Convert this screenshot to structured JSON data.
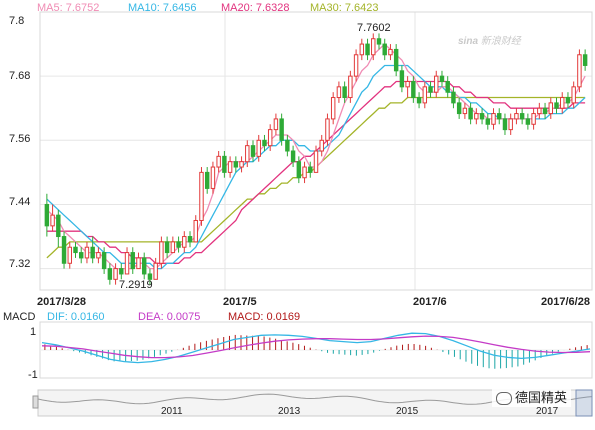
{
  "legend": {
    "ma5": "MA5: 7.6752",
    "ma10": "MA10: 7.6456",
    "ma20": "MA20: 7.6328",
    "ma30": "MA30: 7.6423"
  },
  "macd_legend": {
    "title": "MACD",
    "dif": "DIF: 0.0160",
    "dea": "DEA: 0.0075",
    "macd": "MACD: 0.0169"
  },
  "price_axis": [
    "7.8",
    "7.68",
    "7.56",
    "7.44",
    "7.32"
  ],
  "macd_axis": [
    "1",
    "-1"
  ],
  "date_labels": [
    "2017/3/28",
    "2017/5",
    "2017/6",
    "2017/6/28"
  ],
  "nav_years": [
    "2011",
    "2013",
    "2015",
    "2017"
  ],
  "annotations": {
    "high": "7.7602",
    "low": "7.2919"
  },
  "watermark": "新浪财经",
  "badge": "德国精英",
  "colors": {
    "up": "#e23a3a",
    "down": "#2eaa36",
    "ma5": "#f08cb4",
    "ma10": "#35b7e5",
    "ma20": "#e2337f",
    "ma30": "#a4b429",
    "macd_dif": "#35b7e5",
    "macd_dea": "#c43bc7",
    "macd_hist_pos": "#b11818",
    "macd_hist_neg": "#1aa6a6"
  },
  "chart_data": {
    "type": "candlestick",
    "xlabel": "",
    "ylabel": "",
    "ylim": [
      7.28,
      7.8
    ],
    "ma_series": [
      {
        "name": "MA5",
        "last": 7.6752
      },
      {
        "name": "MA10",
        "last": 7.6456
      },
      {
        "name": "MA20",
        "last": 7.6328
      },
      {
        "name": "MA30",
        "last": 7.6423
      }
    ],
    "candles": [
      [
        7.44,
        7.4,
        7.46,
        7.38,
        0
      ],
      [
        7.4,
        7.42,
        7.44,
        7.39,
        1
      ],
      [
        7.42,
        7.38,
        7.43,
        7.36,
        0
      ],
      [
        7.38,
        7.33,
        7.39,
        7.32,
        0
      ],
      [
        7.33,
        7.36,
        7.37,
        7.32,
        1
      ],
      [
        7.36,
        7.35,
        7.37,
        7.34,
        0
      ],
      [
        7.35,
        7.34,
        7.36,
        7.33,
        0
      ],
      [
        7.34,
        7.36,
        7.37,
        7.33,
        1
      ],
      [
        7.36,
        7.34,
        7.38,
        7.33,
        0
      ],
      [
        7.34,
        7.35,
        7.36,
        7.33,
        1
      ],
      [
        7.35,
        7.32,
        7.36,
        7.31,
        0
      ],
      [
        7.32,
        7.3,
        7.33,
        7.29,
        0
      ],
      [
        7.3,
        7.32,
        7.33,
        7.29,
        1
      ],
      [
        7.32,
        7.31,
        7.33,
        7.3,
        0
      ],
      [
        7.31,
        7.35,
        7.36,
        7.31,
        1
      ],
      [
        7.35,
        7.32,
        7.36,
        7.31,
        0
      ],
      [
        7.32,
        7.34,
        7.35,
        7.32,
        1
      ],
      [
        7.34,
        7.31,
        7.35,
        7.3,
        0
      ],
      [
        7.31,
        7.3,
        7.32,
        7.29,
        0
      ],
      [
        7.3,
        7.33,
        7.34,
        7.3,
        1
      ],
      [
        7.33,
        7.37,
        7.38,
        7.32,
        1
      ],
      [
        7.37,
        7.35,
        7.38,
        7.34,
        0
      ],
      [
        7.35,
        7.37,
        7.38,
        7.35,
        1
      ],
      [
        7.37,
        7.36,
        7.38,
        7.35,
        0
      ],
      [
        7.36,
        7.38,
        7.39,
        7.35,
        1
      ],
      [
        7.38,
        7.37,
        7.39,
        7.36,
        0
      ],
      [
        7.37,
        7.41,
        7.42,
        7.37,
        1
      ],
      [
        7.41,
        7.5,
        7.51,
        7.4,
        1
      ],
      [
        7.5,
        7.47,
        7.51,
        7.46,
        0
      ],
      [
        7.47,
        7.51,
        7.52,
        7.46,
        1
      ],
      [
        7.51,
        7.53,
        7.54,
        7.5,
        1
      ],
      [
        7.53,
        7.5,
        7.54,
        7.49,
        0
      ],
      [
        7.5,
        7.52,
        7.53,
        7.49,
        1
      ],
      [
        7.52,
        7.51,
        7.53,
        7.5,
        0
      ],
      [
        7.51,
        7.52,
        7.53,
        7.5,
        1
      ],
      [
        7.52,
        7.55,
        7.56,
        7.51,
        1
      ],
      [
        7.55,
        7.53,
        7.56,
        7.52,
        0
      ],
      [
        7.53,
        7.56,
        7.57,
        7.52,
        1
      ],
      [
        7.56,
        7.55,
        7.57,
        7.54,
        0
      ],
      [
        7.55,
        7.58,
        7.59,
        7.54,
        1
      ],
      [
        7.58,
        7.6,
        7.61,
        7.57,
        1
      ],
      [
        7.6,
        7.56,
        7.61,
        7.55,
        0
      ],
      [
        7.56,
        7.54,
        7.57,
        7.53,
        0
      ],
      [
        7.54,
        7.52,
        7.55,
        7.51,
        0
      ],
      [
        7.52,
        7.49,
        7.53,
        7.48,
        0
      ],
      [
        7.49,
        7.51,
        7.52,
        7.48,
        1
      ],
      [
        7.51,
        7.5,
        7.52,
        7.49,
        0
      ],
      [
        7.5,
        7.54,
        7.55,
        7.5,
        1
      ],
      [
        7.54,
        7.56,
        7.57,
        7.53,
        1
      ],
      [
        7.56,
        7.6,
        7.61,
        7.55,
        1
      ],
      [
        7.6,
        7.64,
        7.65,
        7.59,
        1
      ],
      [
        7.64,
        7.66,
        7.67,
        7.63,
        1
      ],
      [
        7.66,
        7.64,
        7.67,
        7.63,
        0
      ],
      [
        7.64,
        7.68,
        7.69,
        7.63,
        1
      ],
      [
        7.68,
        7.72,
        7.73,
        7.67,
        1
      ],
      [
        7.72,
        7.74,
        7.75,
        7.71,
        1
      ],
      [
        7.74,
        7.72,
        7.75,
        7.71,
        0
      ],
      [
        7.72,
        7.75,
        7.76,
        7.71,
        1
      ],
      [
        7.75,
        7.74,
        7.76,
        7.73,
        0
      ],
      [
        7.74,
        7.72,
        7.75,
        7.71,
        0
      ],
      [
        7.72,
        7.73,
        7.74,
        7.71,
        1
      ],
      [
        7.73,
        7.69,
        7.74,
        7.68,
        0
      ],
      [
        7.69,
        7.66,
        7.7,
        7.65,
        0
      ],
      [
        7.66,
        7.67,
        7.68,
        7.64,
        1
      ],
      [
        7.67,
        7.64,
        7.68,
        7.63,
        0
      ],
      [
        7.64,
        7.63,
        7.65,
        7.62,
        0
      ],
      [
        7.63,
        7.66,
        7.67,
        7.62,
        1
      ],
      [
        7.66,
        7.65,
        7.67,
        7.64,
        0
      ],
      [
        7.65,
        7.68,
        7.69,
        7.64,
        1
      ],
      [
        7.68,
        7.67,
        7.69,
        7.66,
        0
      ],
      [
        7.67,
        7.65,
        7.68,
        7.64,
        0
      ],
      [
        7.65,
        7.63,
        7.66,
        7.62,
        0
      ],
      [
        7.63,
        7.61,
        7.64,
        7.6,
        0
      ],
      [
        7.61,
        7.62,
        7.63,
        7.6,
        1
      ],
      [
        7.62,
        7.6,
        7.63,
        7.59,
        0
      ],
      [
        7.6,
        7.61,
        7.62,
        7.59,
        1
      ],
      [
        7.61,
        7.6,
        7.62,
        7.59,
        0
      ],
      [
        7.6,
        7.59,
        7.61,
        7.58,
        0
      ],
      [
        7.59,
        7.61,
        7.62,
        7.58,
        1
      ],
      [
        7.61,
        7.6,
        7.62,
        7.59,
        0
      ],
      [
        7.6,
        7.58,
        7.61,
        7.57,
        0
      ],
      [
        7.58,
        7.6,
        7.61,
        7.57,
        1
      ],
      [
        7.6,
        7.61,
        7.62,
        7.59,
        1
      ],
      [
        7.61,
        7.6,
        7.62,
        7.59,
        0
      ],
      [
        7.6,
        7.59,
        7.61,
        7.58,
        0
      ],
      [
        7.59,
        7.61,
        7.62,
        7.58,
        1
      ],
      [
        7.61,
        7.62,
        7.63,
        7.6,
        1
      ],
      [
        7.62,
        7.61,
        7.63,
        7.6,
        0
      ],
      [
        7.61,
        7.63,
        7.64,
        7.6,
        1
      ],
      [
        7.63,
        7.62,
        7.64,
        7.61,
        0
      ],
      [
        7.62,
        7.64,
        7.65,
        7.61,
        1
      ],
      [
        7.64,
        7.63,
        7.65,
        7.62,
        0
      ],
      [
        7.63,
        7.66,
        7.67,
        7.62,
        1
      ],
      [
        7.66,
        7.72,
        7.73,
        7.65,
        1
      ],
      [
        7.72,
        7.7,
        7.73,
        7.69,
        0
      ]
    ],
    "ma": {
      "ma5": [
        7.43,
        7.42,
        7.41,
        7.39,
        7.38,
        7.37,
        7.36,
        7.35,
        7.35,
        7.35,
        7.34,
        7.33,
        7.32,
        7.32,
        7.32,
        7.32,
        7.33,
        7.33,
        7.32,
        7.32,
        7.33,
        7.34,
        7.35,
        7.36,
        7.37,
        7.37,
        7.38,
        7.41,
        7.43,
        7.46,
        7.5,
        7.51,
        7.52,
        7.52,
        7.52,
        7.52,
        7.53,
        7.54,
        7.55,
        7.56,
        7.57,
        7.57,
        7.57,
        7.56,
        7.54,
        7.53,
        7.51,
        7.51,
        7.52,
        7.54,
        7.57,
        7.6,
        7.63,
        7.65,
        7.67,
        7.69,
        7.7,
        7.72,
        7.73,
        7.74,
        7.73,
        7.72,
        7.71,
        7.69,
        7.68,
        7.66,
        7.65,
        7.65,
        7.65,
        7.66,
        7.66,
        7.65,
        7.64,
        7.63,
        7.62,
        7.61,
        7.61,
        7.6,
        7.6,
        7.6,
        7.6,
        7.6,
        7.6,
        7.6,
        7.6,
        7.6,
        7.61,
        7.61,
        7.62,
        7.62,
        7.63,
        7.63,
        7.64,
        7.66,
        7.68
      ],
      "ma10": [
        7.45,
        7.44,
        7.43,
        7.42,
        7.41,
        7.4,
        7.39,
        7.38,
        7.37,
        7.36,
        7.35,
        7.35,
        7.34,
        7.33,
        7.33,
        7.33,
        7.33,
        7.33,
        7.33,
        7.32,
        7.32,
        7.33,
        7.33,
        7.34,
        7.35,
        7.35,
        7.36,
        7.38,
        7.4,
        7.42,
        7.44,
        7.46,
        7.48,
        7.5,
        7.51,
        7.52,
        7.52,
        7.53,
        7.54,
        7.55,
        7.55,
        7.56,
        7.56,
        7.56,
        7.55,
        7.55,
        7.54,
        7.54,
        7.54,
        7.55,
        7.56,
        7.57,
        7.59,
        7.61,
        7.63,
        7.65,
        7.66,
        7.68,
        7.69,
        7.7,
        7.7,
        7.7,
        7.7,
        7.7,
        7.69,
        7.68,
        7.67,
        7.66,
        7.66,
        7.66,
        7.65,
        7.65,
        7.64,
        7.64,
        7.63,
        7.63,
        7.62,
        7.61,
        7.61,
        7.6,
        7.6,
        7.6,
        7.6,
        7.6,
        7.6,
        7.6,
        7.6,
        7.6,
        7.61,
        7.61,
        7.61,
        7.62,
        7.62,
        7.63,
        7.64
      ],
      "ma20": [
        7.39,
        7.39,
        7.39,
        7.39,
        7.39,
        7.39,
        7.39,
        7.38,
        7.38,
        7.37,
        7.37,
        7.36,
        7.36,
        7.35,
        7.35,
        7.34,
        7.34,
        7.34,
        7.34,
        7.33,
        7.33,
        7.33,
        7.33,
        7.33,
        7.34,
        7.34,
        7.35,
        7.35,
        7.36,
        7.37,
        7.38,
        7.39,
        7.4,
        7.41,
        7.43,
        7.44,
        7.45,
        7.46,
        7.47,
        7.48,
        7.49,
        7.5,
        7.51,
        7.52,
        7.52,
        7.53,
        7.53,
        7.54,
        7.55,
        7.56,
        7.57,
        7.58,
        7.59,
        7.6,
        7.61,
        7.62,
        7.63,
        7.64,
        7.65,
        7.66,
        7.66,
        7.67,
        7.67,
        7.67,
        7.67,
        7.67,
        7.67,
        7.67,
        7.67,
        7.67,
        7.67,
        7.66,
        7.66,
        7.65,
        7.65,
        7.64,
        7.64,
        7.64,
        7.63,
        7.63,
        7.63,
        7.62,
        7.62,
        7.62,
        7.62,
        7.62,
        7.62,
        7.62,
        7.62,
        7.62,
        7.62,
        7.62,
        7.63,
        7.63,
        7.63
      ],
      "ma30": [
        7.34,
        7.35,
        7.36,
        7.36,
        7.37,
        7.37,
        7.37,
        7.37,
        7.37,
        7.37,
        7.37,
        7.37,
        7.37,
        7.37,
        7.37,
        7.37,
        7.37,
        7.37,
        7.37,
        7.37,
        7.37,
        7.37,
        7.37,
        7.37,
        7.37,
        7.37,
        7.37,
        7.37,
        7.38,
        7.39,
        7.4,
        7.41,
        7.42,
        7.43,
        7.44,
        7.45,
        7.45,
        7.46,
        7.46,
        7.47,
        7.47,
        7.48,
        7.48,
        7.49,
        7.49,
        7.5,
        7.5,
        7.51,
        7.52,
        7.53,
        7.54,
        7.55,
        7.56,
        7.57,
        7.58,
        7.59,
        7.6,
        7.61,
        7.62,
        7.62,
        7.63,
        7.63,
        7.63,
        7.64,
        7.64,
        7.64,
        7.64,
        7.64,
        7.64,
        7.64,
        7.64,
        7.64,
        7.64,
        7.64,
        7.64,
        7.64,
        7.64,
        7.64,
        7.64,
        7.64,
        7.64,
        7.64,
        7.64,
        7.64,
        7.64,
        7.64,
        7.64,
        7.64,
        7.64,
        7.64,
        7.64,
        7.64,
        7.64,
        7.64,
        7.64
      ]
    },
    "macd": {
      "ylim": [
        -1,
        1
      ],
      "dif": [
        0.35,
        0.25,
        0.1,
        -0.05,
        -0.25,
        -0.45,
        -0.55,
        -0.6,
        -0.55,
        -0.45,
        -0.3,
        -0.1,
        0.1,
        0.3,
        0.5,
        0.6,
        0.7,
        0.72,
        0.7,
        0.65,
        0.55,
        0.45,
        0.4,
        0.35,
        0.4,
        0.55,
        0.7,
        0.8,
        0.78,
        0.65,
        0.45,
        0.2,
        -0.05,
        -0.25,
        -0.35,
        -0.4,
        -0.35,
        -0.25,
        -0.15,
        -0.05,
        0.05
      ],
      "dea": [
        0.2,
        0.18,
        0.12,
        0.05,
        -0.05,
        -0.15,
        -0.25,
        -0.32,
        -0.36,
        -0.36,
        -0.33,
        -0.26,
        -0.15,
        -0.03,
        0.1,
        0.22,
        0.33,
        0.42,
        0.48,
        0.52,
        0.54,
        0.54,
        0.52,
        0.5,
        0.5,
        0.53,
        0.58,
        0.63,
        0.66,
        0.65,
        0.6,
        0.5,
        0.38,
        0.25,
        0.13,
        0.03,
        -0.05,
        -0.1,
        -0.12,
        -0.11,
        -0.08
      ],
      "hist_sign": "pos/neg bars following DIF-DEA"
    }
  }
}
